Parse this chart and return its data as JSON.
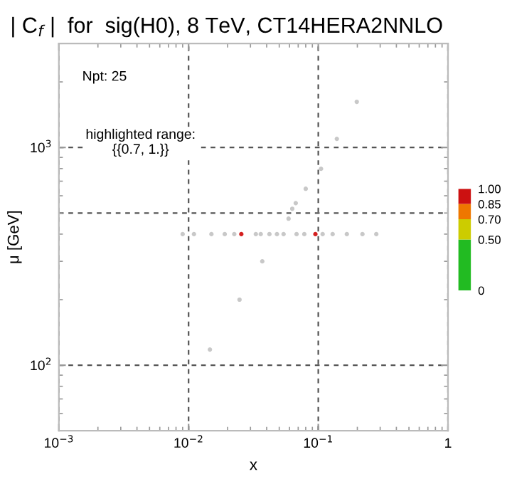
{
  "chart_data": {
    "type": "scatter",
    "title": "| C$_{f}$ |  for  sig(H0), 8 TeV, CT14HERA2NNLO",
    "xlabel": "x",
    "ylabel": "μ [GeV]",
    "annotations": [
      "Npt: 25",
      "highlighted range:\n{{0.7, 1.}}"
    ],
    "x": [
      0.009,
      0.011,
      0.015,
      0.019,
      0.0225,
      0.0255,
      0.033,
      0.036,
      0.042,
      0.048,
      0.054,
      0.068,
      0.078,
      0.095,
      0.108,
      0.129,
      0.166,
      0.219,
      0.28,
      0.198,
      0.139,
      0.105,
      0.08,
      0.067,
      0.063,
      0.059,
      0.037,
      0.0247,
      0.0146
    ],
    "values": [
      400,
      400,
      400,
      400,
      400,
      400,
      400,
      400,
      400,
      400,
      400,
      400,
      400,
      400,
      400,
      400,
      400,
      400,
      400,
      1620,
      1095,
      798,
      646,
      555,
      523,
      471,
      300,
      200,
      118
    ],
    "colors": [
      "#c8c8c8",
      "#c8c8c8",
      "#c8c8c8",
      "#c8c8c8",
      "#c8c8c8",
      "#d42020",
      "#c8c8c8",
      "#c8c8c8",
      "#c8c8c8",
      "#c8c8c8",
      "#c8c8c8",
      "#c8c8c8",
      "#c8c8c8",
      "#d42020",
      "#c8c8c8",
      "#c8c8c8",
      "#c8c8c8",
      "#c8c8c8",
      "#c8c8c8",
      "#c8c8c8",
      "#c8c8c8",
      "#c8c8c8",
      "#c8c8c8",
      "#c8c8c8",
      "#c8c8c8",
      "#c8c8c8",
      "#c8c8c8",
      "#c8c8c8",
      "#c8c8c8"
    ],
    "log": "xy",
    "xlim": [
      0.001,
      1
    ],
    "ylim": [
      50,
      3000
    ],
    "xticks": [
      {
        "value": 0.001,
        "label": "10$^{−3}$"
      },
      {
        "value": 0.01,
        "label": "10$^{−2}$"
      },
      {
        "value": 0.1,
        "label": "10$^{−1}$"
      },
      1
    ],
    "yticks": [
      {
        "value": 100,
        "label": "10$^{2}$"
      },
      {
        "value": 1000,
        "label": "10$^{3}$"
      }
    ],
    "ref_lines": [
      {
        "axis": "y",
        "value": 500,
        "label": null
      }
    ],
    "grid": true,
    "marker": "circle",
    "clim": [
      0,
      1
    ],
    "cticks": [
      {
        "value": 0,
        "label": "0"
      },
      {
        "value": 0.5,
        "label": "0.50"
      },
      {
        "value": 0.7,
        "label": "0.70"
      },
      {
        "value": 0.85,
        "label": "0.85"
      },
      {
        "value": 1,
        "label": "1.00"
      }
    ]
  }
}
